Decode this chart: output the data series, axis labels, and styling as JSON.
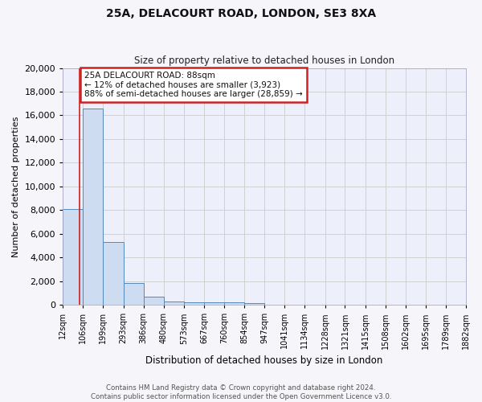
{
  "title_line1": "25A, DELACOURT ROAD, LONDON, SE3 8XA",
  "title_line2": "Size of property relative to detached houses in London",
  "xlabel": "Distribution of detached houses by size in London",
  "ylabel": "Number of detached properties",
  "bin_edges": [
    12,
    106,
    199,
    293,
    386,
    480,
    573,
    667,
    760,
    854,
    947,
    1041,
    1134,
    1228,
    1321,
    1415,
    1508,
    1602,
    1695,
    1789,
    1882
  ],
  "bar_heights": [
    8100,
    16600,
    5300,
    1850,
    700,
    310,
    230,
    210,
    190,
    160,
    0,
    0,
    0,
    0,
    0,
    0,
    0,
    0,
    0,
    0
  ],
  "bar_color": "#cddcf0",
  "bar_edge_color": "#5588bb",
  "grid_color": "#cccccc",
  "background_color": "#edf0fa",
  "fig_background_color": "#f5f5fa",
  "property_size": 88,
  "red_line_color": "#cc2222",
  "annotation_text": "25A DELACOURT ROAD: 88sqm\n← 12% of detached houses are smaller (3,923)\n88% of semi-detached houses are larger (28,859) →",
  "annotation_box_facecolor": "#ffffff",
  "annotation_border_color": "#cc2222",
  "ylim": [
    0,
    20000
  ],
  "yticks": [
    0,
    2000,
    4000,
    6000,
    8000,
    10000,
    12000,
    14000,
    16000,
    18000,
    20000
  ],
  "tick_labels": [
    "12sqm",
    "106sqm",
    "199sqm",
    "293sqm",
    "386sqm",
    "480sqm",
    "573sqm",
    "667sqm",
    "760sqm",
    "854sqm",
    "947sqm",
    "1041sqm",
    "1134sqm",
    "1228sqm",
    "1321sqm",
    "1415sqm",
    "1508sqm",
    "1602sqm",
    "1695sqm",
    "1789sqm",
    "1882sqm"
  ],
  "footer_line1": "Contains HM Land Registry data © Crown copyright and database right 2024.",
  "footer_line2": "Contains public sector information licensed under the Open Government Licence v3.0."
}
